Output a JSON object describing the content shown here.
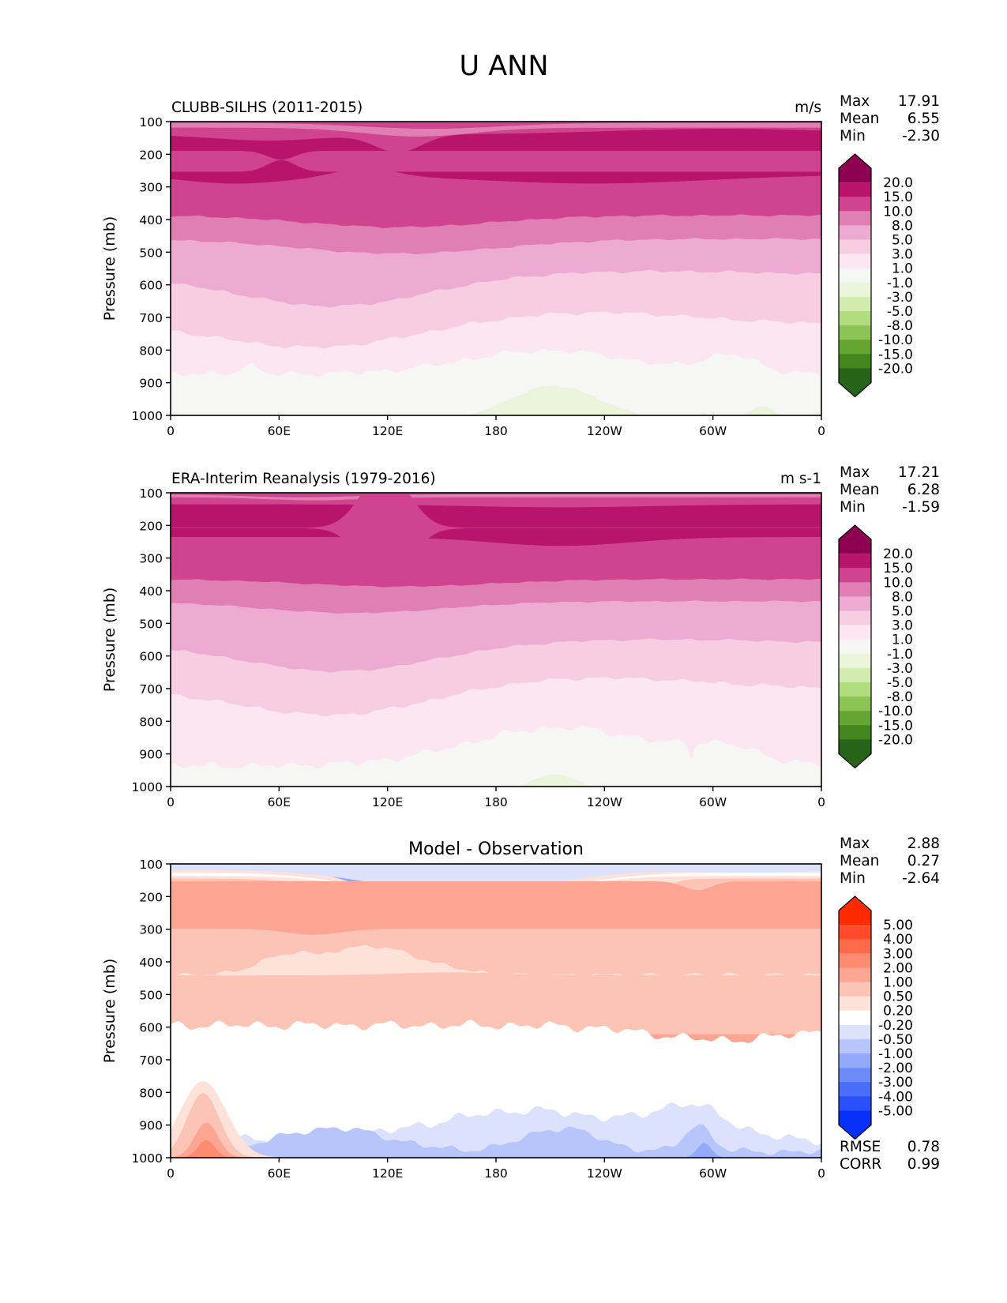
{
  "chart_data": {
    "type": "heatmap",
    "title": "U ANN",
    "x_ticks": [
      "0",
      "60E",
      "120E",
      "180",
      "120W",
      "60W",
      "0"
    ],
    "y_ticks": [
      "100",
      "200",
      "300",
      "400",
      "500",
      "600",
      "700",
      "800",
      "900",
      "1000"
    ],
    "ylim": [
      1000,
      100
    ],
    "xlim": [
      0,
      360
    ],
    "ylabel": "Pressure (mb)",
    "panels": [
      {
        "id": "model",
        "left_title": "CLUBB-SILHS (2011-2015)",
        "right_title": "m/s",
        "center_title": "",
        "stats": [
          {
            "label": "Max",
            "value": "17.91"
          },
          {
            "label": "Mean",
            "value": "6.55"
          },
          {
            "label": "Min",
            "value": "-2.30"
          }
        ],
        "extra_stats": [],
        "colorbar": {
          "levels": [
            "20.0",
            "15.0",
            "10.0",
            "8.0",
            "5.0",
            "3.0",
            "1.0",
            "-1.0",
            "-3.0",
            "-5.0",
            "-8.0",
            "-10.0",
            "-15.0",
            "-20.0"
          ],
          "colors": [
            "#8e0152",
            "#b8146d",
            "#d0448f",
            "#e07fb3",
            "#eeabd1",
            "#f7cde4",
            "#fbe6f1",
            "#f6f6f4",
            "#eaf5dc",
            "#d2ecb0",
            "#b2dc80",
            "#8cc556",
            "#67a533",
            "#44861e",
            "#276419"
          ]
        },
        "field": "clubb"
      },
      {
        "id": "obs",
        "left_title": "ERA-Interim Reanalysis (1979-2016)",
        "right_title": "m s-1",
        "center_title": "",
        "stats": [
          {
            "label": "Max",
            "value": "17.21"
          },
          {
            "label": "Mean",
            "value": "6.28"
          },
          {
            "label": "Min",
            "value": "-1.59"
          }
        ],
        "extra_stats": [],
        "colorbar": {
          "levels": [
            "20.0",
            "15.0",
            "10.0",
            "8.0",
            "5.0",
            "3.0",
            "1.0",
            "-1.0",
            "-3.0",
            "-5.0",
            "-8.0",
            "-10.0",
            "-15.0",
            "-20.0"
          ],
          "colors": [
            "#8e0152",
            "#b8146d",
            "#d0448f",
            "#e07fb3",
            "#eeabd1",
            "#f7cde4",
            "#fbe6f1",
            "#f6f6f4",
            "#eaf5dc",
            "#d2ecb0",
            "#b2dc80",
            "#8cc556",
            "#67a533",
            "#44861e",
            "#276419"
          ]
        },
        "field": "era"
      },
      {
        "id": "diff",
        "left_title": "",
        "right_title": "",
        "center_title": "Model - Observation",
        "stats": [
          {
            "label": "Max",
            "value": "2.88"
          },
          {
            "label": "Mean",
            "value": "0.27"
          },
          {
            "label": "Min",
            "value": "-2.64"
          }
        ],
        "extra_stats": [
          {
            "label": "RMSE",
            "value": "0.78"
          },
          {
            "label": "CORR",
            "value": "0.99"
          }
        ],
        "colorbar": {
          "levels": [
            "5.00",
            "4.00",
            "3.00",
            "2.00",
            "1.00",
            "0.50",
            "0.20",
            "-0.20",
            "-0.50",
            "-1.00",
            "-2.00",
            "-3.00",
            "-4.00",
            "-5.00"
          ],
          "colors": [
            "#ff2a00",
            "#ff4b2c",
            "#ff6a4b",
            "#fd8b6f",
            "#fda593",
            "#fdc3b5",
            "#fde2da",
            "#ffffff",
            "#dce2fb",
            "#b7c5fb",
            "#93a9fb",
            "#6e8bfa",
            "#4a6dfa",
            "#2a50fb",
            "#0730fb"
          ]
        },
        "field": "diff"
      }
    ]
  }
}
